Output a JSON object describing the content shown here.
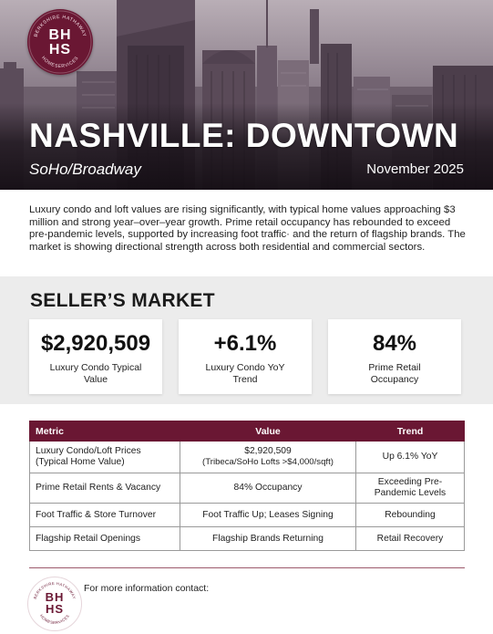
{
  "brand": {
    "monogram_top": "BH",
    "monogram_bottom": "HS",
    "ring_top": "BERKSHIRE HATHAWAY",
    "ring_bottom": "HOMESERVICES",
    "accent_color": "#6a1733"
  },
  "header": {
    "title": "NASHVILLE: DOWNTOWN",
    "subtitle": "SoHo/Broadway",
    "date": "November 2025"
  },
  "intro": "Luxury condo and loft values are rising significantly, with typical home values approaching $3 million and strong year–over–year growth. Prime retail occupancy has rebounded to exceed pre-pandemic levels, supported by increasing foot traffic· and the return of flagship brands. The market is showing directional strength across both residential and commercial sectors.",
  "market": {
    "title": "SELLER’S MARKET",
    "cards": [
      {
        "value": "$2,920,509",
        "label": "Luxury Condo Typical Value"
      },
      {
        "value": "+6.1%",
        "label": "Luxury Condo YoY Trend"
      },
      {
        "value": "84%",
        "label": "Prime Retail Occupancy"
      }
    ]
  },
  "table": {
    "headers": [
      "Metric",
      "Value",
      "Trend"
    ],
    "rows": [
      {
        "metric": "Luxury Condo/Loft Prices",
        "metric_sub": "(Typical Home Value)",
        "value": "$2,920,509",
        "value_sub": "(Tribeca/SoHo Lofts >$4,000/sqft)",
        "trend": "Up 6.1% YoY"
      },
      {
        "metric": "Prime Retail Rents & Vacancy",
        "value": "84% Occupancy",
        "trend": "Exceeding Pre-Pandemic Levels"
      },
      {
        "metric": "Foot Traffic & Store Turnover",
        "value": "Foot Traffic Up; Leases Signing",
        "trend": "Rebounding"
      },
      {
        "metric": "Flagship Retail Openings",
        "value": "Flagship Brands Returning",
        "trend": "Retail Recovery"
      }
    ]
  },
  "footer": {
    "contact": "For more information contact:"
  }
}
